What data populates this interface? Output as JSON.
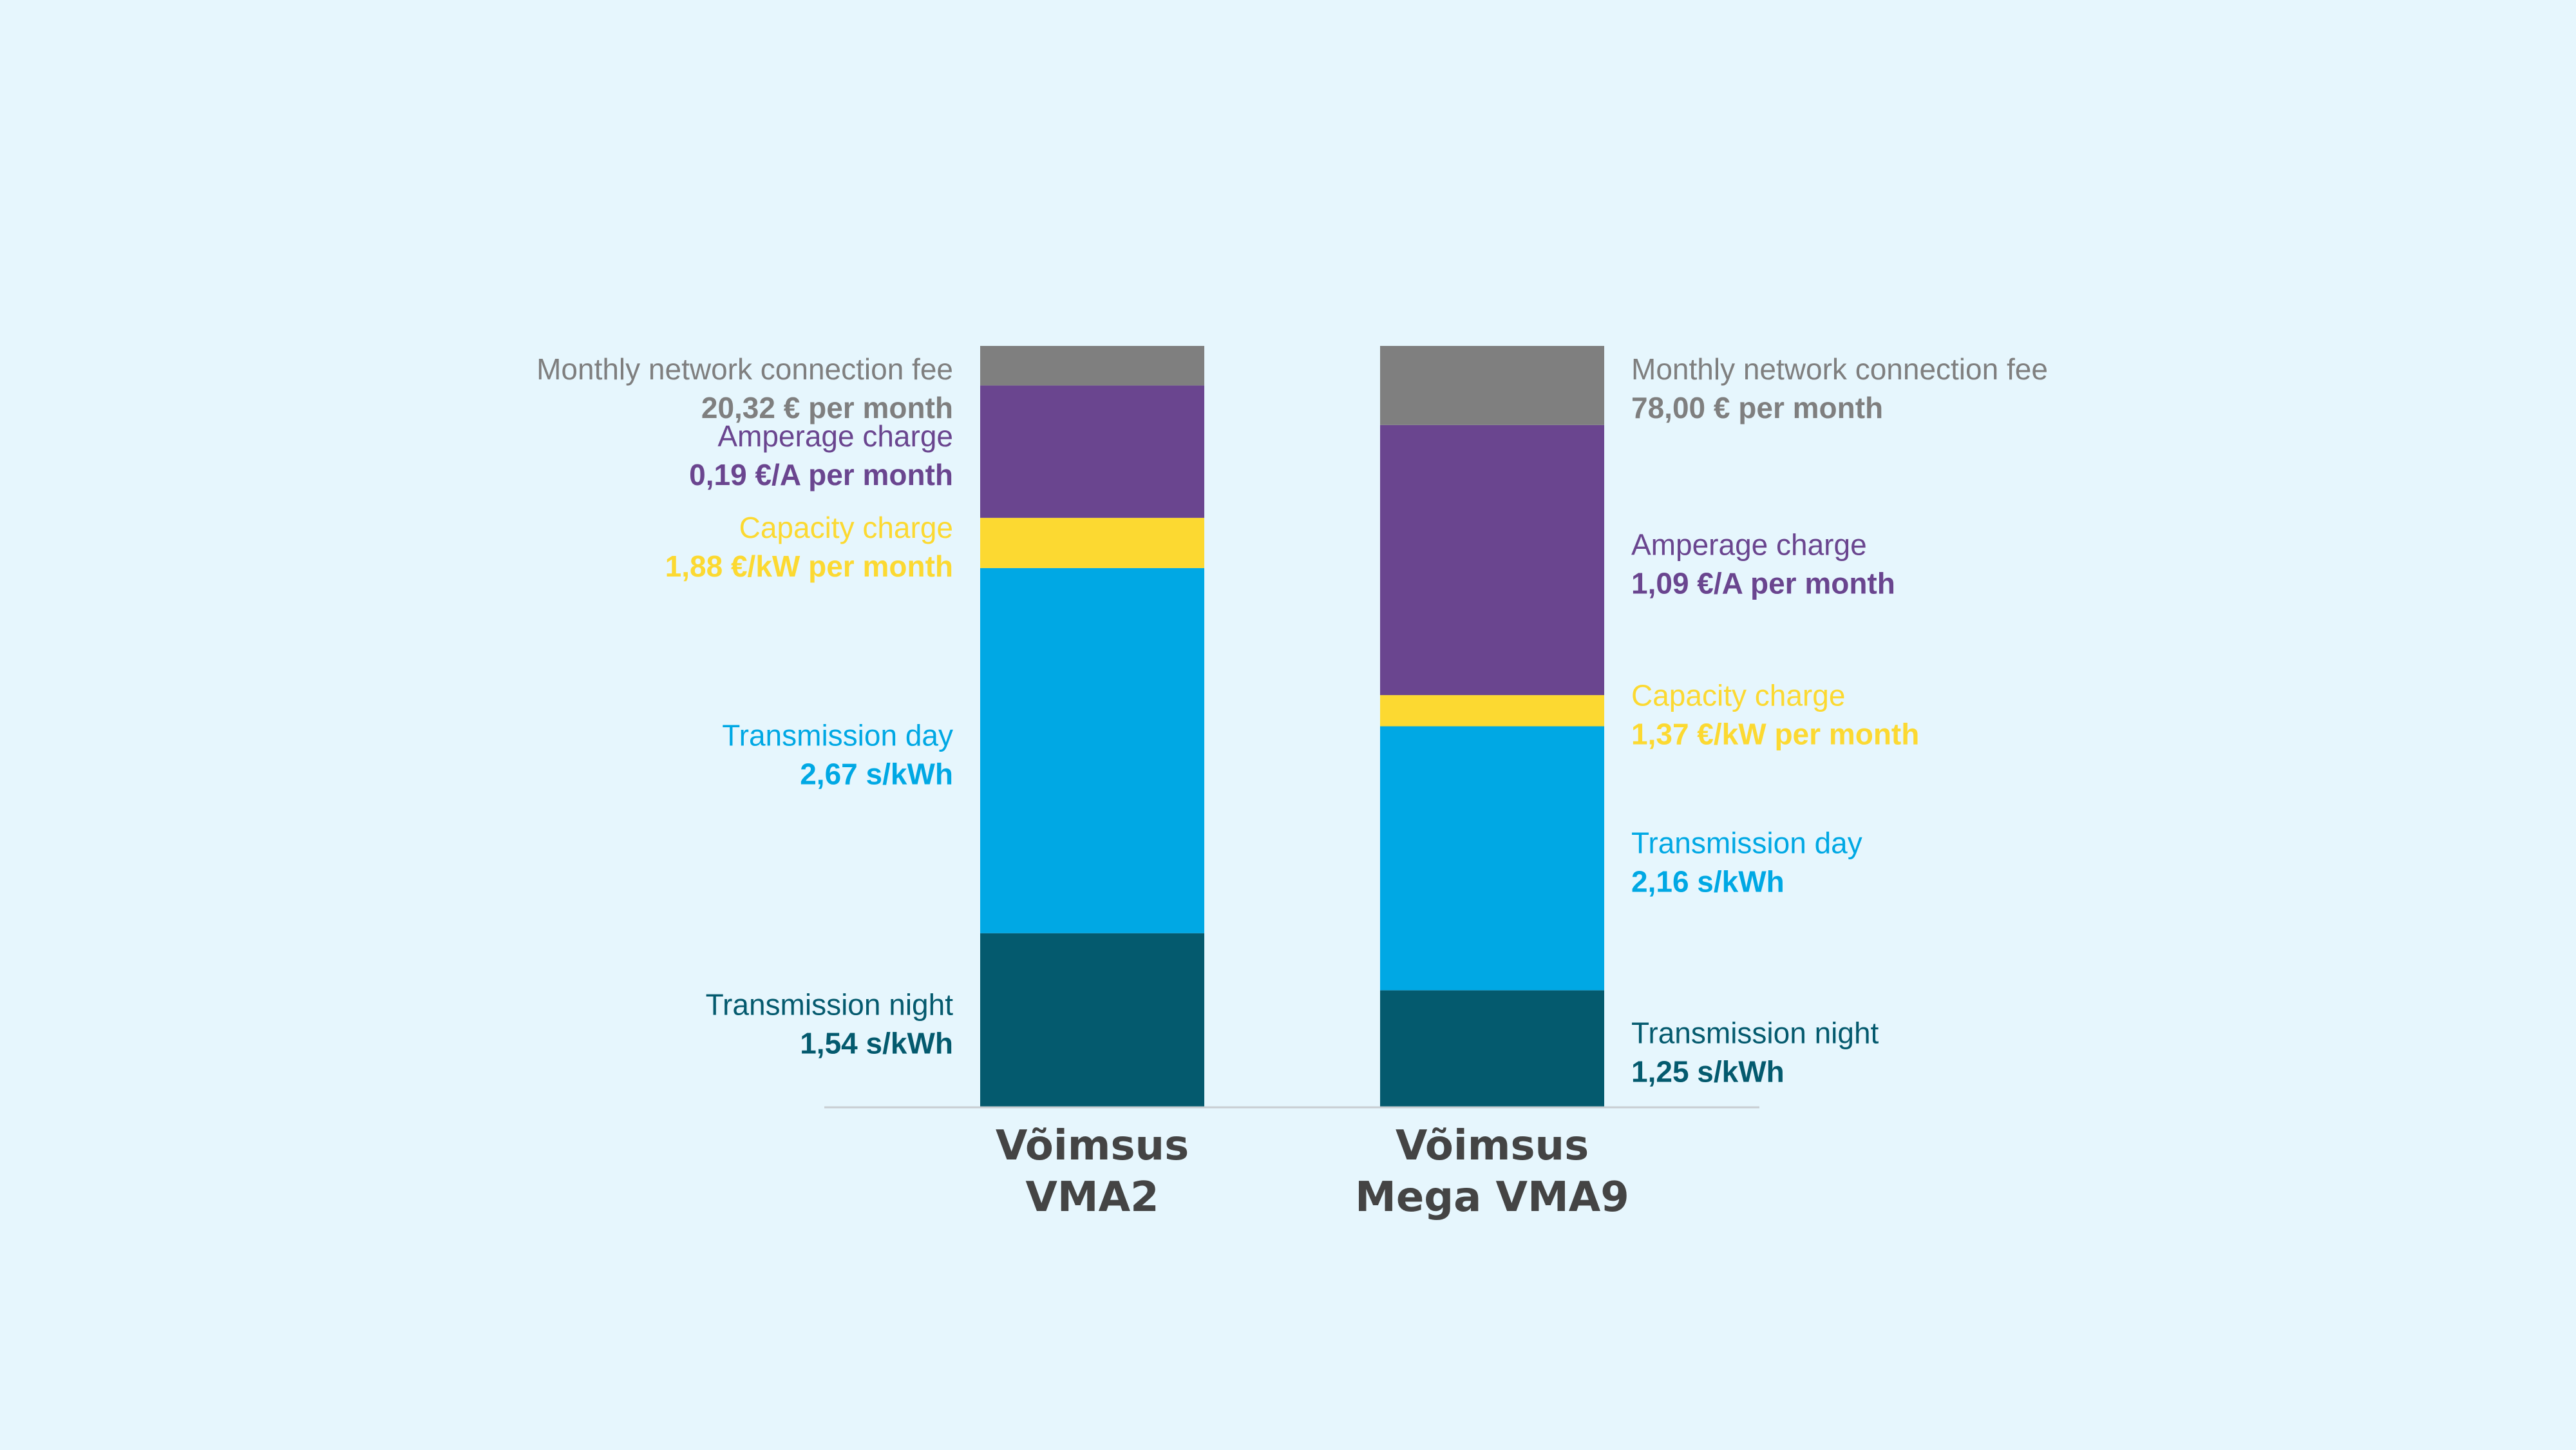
{
  "chart_data": {
    "type": "bar",
    "stacked": true,
    "grid": false,
    "categories": [
      {
        "line1": "Võimsus",
        "line2": "VMA2"
      },
      {
        "line1": "Võimsus",
        "line2": "Mega VMA9"
      }
    ],
    "stack_order_bottom_to_top": [
      "night",
      "day",
      "capacity",
      "amperage",
      "monthly"
    ],
    "series": {
      "night": {
        "name": "Transmission night",
        "color": "#045a6e",
        "labels": [
          "1,54 s/kWh",
          "1,25 s/kWh"
        ],
        "values": [
          1.54,
          1.25
        ]
      },
      "day": {
        "name": "Transmission day",
        "color": "#00a8e4",
        "labels": [
          "2,67 s/kWh",
          "2,16 s/kWh"
        ],
        "values": [
          2.67,
          2.16
        ]
      },
      "capacity": {
        "name": "Capacity charge",
        "color": "#fcd931",
        "labels": [
          "1,88 €/kW per month",
          "1,37 €/kW per month"
        ],
        "values": [
          1.88,
          1.37
        ]
      },
      "amperage": {
        "name": "Amperage charge",
        "color": "#6a458f",
        "labels": [
          "0,19 €/A per month",
          "1,09 €/A per month"
        ],
        "values": [
          0.19,
          1.09
        ]
      },
      "monthly": {
        "name": "Monthly network connection fee",
        "color": "#7f7f7f",
        "labels": [
          "20,32 € per month",
          "78,00 € per month"
        ],
        "values": [
          20.32,
          78.0
        ]
      }
    },
    "segment_share": [
      {
        "night": 0.228,
        "day": 0.48,
        "capacity": 0.066,
        "amperage": 0.174,
        "monthly": 0.052
      },
      {
        "night": 0.153,
        "day": 0.347,
        "capacity": 0.041,
        "amperage": 0.355,
        "monthly": 0.104
      }
    ],
    "axis_color": "#c8cdd2"
  }
}
